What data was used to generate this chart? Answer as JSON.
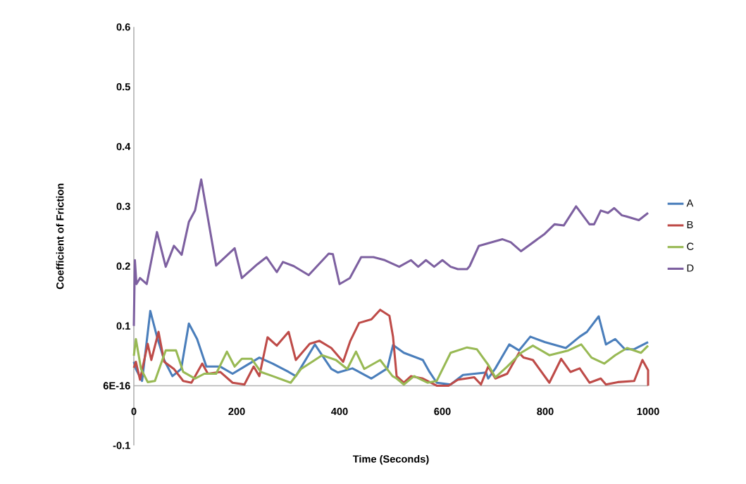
{
  "chart_data": {
    "type": "line",
    "xlabel": "Time (Seconds)",
    "ylabel": "Coefficient of Friction",
    "xlim": [
      0,
      1000
    ],
    "xticks": [
      0,
      200,
      400,
      600,
      800,
      1000
    ],
    "ylim": [
      -0.1,
      0.6
    ],
    "yticks": [
      -0.1,
      {
        "value": 0,
        "label": "6E-16"
      },
      0.1,
      0.2,
      0.3,
      0.4,
      0.5,
      0.6
    ],
    "legend": "right",
    "series": [
      {
        "name": "A",
        "color": "#4a7ebb",
        "x": [
          0,
          4,
          16,
          32,
          45,
          59,
          75,
          92,
          107,
          123,
          141,
          168,
          192,
          215,
          244,
          270,
          301,
          315,
          352,
          384,
          397,
          425,
          462,
          493,
          504,
          525,
          562,
          575,
          589,
          616,
          640,
          685,
          689,
          703,
          730,
          749,
          771,
          799,
          840,
          867,
          881,
          904,
          918,
          936,
          955,
          973,
          1000
        ],
        "values": [
          0.04,
          0.028,
          0.008,
          0.125,
          0.082,
          0.043,
          0.016,
          0.028,
          0.104,
          0.078,
          0.032,
          0.032,
          0.02,
          0.032,
          0.047,
          0.037,
          0.023,
          0.016,
          0.069,
          0.028,
          0.022,
          0.029,
          0.012,
          0.029,
          0.068,
          0.055,
          0.043,
          0.023,
          0.005,
          0.002,
          0.018,
          0.022,
          0.012,
          0.029,
          0.069,
          0.059,
          0.082,
          0.073,
          0.063,
          0.082,
          0.09,
          0.116,
          0.069,
          0.078,
          0.061,
          0.061,
          0.073
        ]
      },
      {
        "name": "B",
        "color": "#be4b48",
        "x": [
          0,
          4,
          12,
          27,
          34,
          48,
          59,
          78,
          96,
          112,
          133,
          144,
          168,
          192,
          215,
          233,
          244,
          260,
          278,
          301,
          315,
          342,
          361,
          384,
          407,
          421,
          438,
          462,
          479,
          497,
          504,
          511,
          525,
          539,
          562,
          589,
          612,
          630,
          662,
          675,
          689,
          703,
          726,
          749,
          758,
          776,
          808,
          831,
          849,
          867,
          886,
          908,
          918,
          941,
          973,
          989,
          1000,
          1000
        ],
        "values": [
          0.03,
          0.04,
          0.01,
          0.07,
          0.043,
          0.09,
          0.04,
          0.028,
          0.008,
          0.005,
          0.037,
          0.02,
          0.023,
          0.005,
          0.002,
          0.032,
          0.016,
          0.081,
          0.067,
          0.09,
          0.043,
          0.07,
          0.075,
          0.063,
          0.04,
          0.075,
          0.105,
          0.111,
          0.127,
          0.117,
          0.082,
          0.016,
          0.005,
          0.016,
          0.012,
          0.0,
          0.0,
          0.01,
          0.014,
          0.002,
          0.032,
          0.012,
          0.02,
          0.055,
          0.047,
          0.043,
          0.005,
          0.045,
          0.023,
          0.029,
          0.005,
          0.012,
          0.002,
          0.006,
          0.008,
          0.043,
          0.026,
          0.0
        ]
      },
      {
        "name": "C",
        "color": "#98b954",
        "x": [
          0,
          4,
          14,
          27,
          41,
          62,
          82,
          96,
          119,
          137,
          160,
          181,
          196,
          210,
          229,
          247,
          270,
          305,
          325,
          352,
          366,
          393,
          415,
          432,
          448,
          479,
          503,
          511,
          525,
          545,
          571,
          589,
          616,
          648,
          667,
          689,
          703,
          726,
          753,
          776,
          808,
          845,
          870,
          890,
          915,
          936,
          959,
          986,
          1000
        ],
        "values": [
          0.05,
          0.078,
          0.028,
          0.006,
          0.008,
          0.059,
          0.059,
          0.023,
          0.012,
          0.02,
          0.02,
          0.057,
          0.032,
          0.045,
          0.045,
          0.023,
          0.016,
          0.005,
          0.028,
          0.043,
          0.051,
          0.043,
          0.028,
          0.057,
          0.028,
          0.043,
          0.016,
          0.012,
          0.002,
          0.016,
          0.005,
          0.008,
          0.055,
          0.064,
          0.061,
          0.035,
          0.014,
          0.032,
          0.055,
          0.067,
          0.051,
          0.059,
          0.069,
          0.047,
          0.037,
          0.051,
          0.063,
          0.055,
          0.067
        ]
      },
      {
        "name": "D",
        "color": "#7d60a0",
        "x": [
          0,
          2,
          5,
          12,
          25,
          45,
          62,
          78,
          93,
          107,
          119,
          131,
          160,
          196,
          210,
          240,
          258,
          278,
          290,
          311,
          340,
          379,
          387,
          400,
          420,
          442,
          466,
          488,
          516,
          539,
          553,
          568,
          584,
          600,
          616,
          630,
          648,
          653,
          671,
          717,
          733,
          753,
          799,
          818,
          836,
          860,
          886,
          895,
          908,
          922,
          934,
          949,
          958,
          982,
          1000
        ],
        "values": [
          0.1,
          0.21,
          0.17,
          0.18,
          0.17,
          0.257,
          0.199,
          0.234,
          0.219,
          0.274,
          0.293,
          0.345,
          0.201,
          0.23,
          0.18,
          0.203,
          0.215,
          0.19,
          0.207,
          0.2,
          0.185,
          0.221,
          0.22,
          0.17,
          0.18,
          0.215,
          0.215,
          0.21,
          0.199,
          0.21,
          0.199,
          0.21,
          0.199,
          0.21,
          0.199,
          0.195,
          0.195,
          0.2,
          0.234,
          0.245,
          0.24,
          0.225,
          0.254,
          0.27,
          0.268,
          0.3,
          0.27,
          0.27,
          0.293,
          0.289,
          0.297,
          0.285,
          0.283,
          0.277,
          0.289
        ]
      }
    ]
  }
}
